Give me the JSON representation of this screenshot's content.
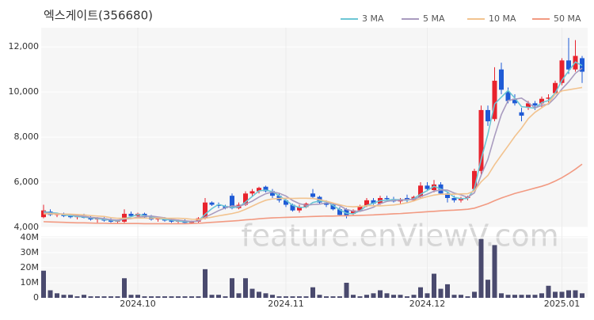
{
  "chart_data": {
    "type": "candlestick",
    "title": "엑스게이트(356680)",
    "watermark": "feature.enViewV.com",
    "up_color": "#e8232d",
    "down_color": "#1f5bd6",
    "categories": [
      null,
      null,
      null,
      null,
      null,
      null,
      null,
      null,
      null,
      null,
      null,
      null,
      null,
      null,
      "2024.10",
      null,
      null,
      null,
      null,
      null,
      null,
      null,
      null,
      null,
      null,
      null,
      null,
      null,
      null,
      null,
      null,
      null,
      null,
      null,
      null,
      null,
      "2024.11",
      null,
      null,
      null,
      null,
      null,
      null,
      null,
      null,
      null,
      null,
      null,
      null,
      null,
      null,
      null,
      null,
      null,
      null,
      null,
      null,
      "2024.12",
      null,
      null,
      null,
      null,
      null,
      null,
      null,
      null,
      null,
      null,
      null,
      null,
      null,
      null,
      null,
      null,
      null,
      null,
      null,
      "2025.01",
      null,
      null,
      null
    ],
    "open": [
      4450,
      4700,
      4550,
      4600,
      4500,
      4450,
      4500,
      4420,
      4350,
      4400,
      4300,
      4250,
      4250,
      4600,
      4500,
      4600,
      4450,
      4350,
      4400,
      4300,
      4250,
      4300,
      4200,
      4250,
      4400,
      5100,
      5000,
      4950,
      5400,
      4850,
      5000,
      5500,
      5600,
      5800,
      5600,
      5400,
      5200,
      5000,
      4750,
      4900,
      5500,
      5350,
      5100,
      5000,
      4800,
      4800,
      4600,
      4750,
      4950,
      5200,
      5050,
      5300,
      5250,
      5150,
      5300,
      5200,
      5350,
      5850,
      5650,
      5900,
      5500,
      5300,
      5200,
      5300,
      5700,
      6500,
      9200,
      8800,
      11000,
      10000,
      9700,
      9100,
      9300,
      9500,
      9500,
      9700,
      9950,
      10400,
      11400,
      11000,
      11500
    ],
    "high": [
      5000,
      4800,
      4650,
      4650,
      4600,
      4550,
      4600,
      4500,
      4450,
      4450,
      4400,
      4350,
      4800,
      4700,
      4650,
      4650,
      4550,
      4450,
      4450,
      4400,
      4350,
      4350,
      4300,
      4450,
      5300,
      5150,
      5100,
      5000,
      5500,
      5100,
      5600,
      5700,
      5800,
      5850,
      5700,
      5500,
      5300,
      5050,
      5000,
      5100,
      5700,
      5400,
      5200,
      5050,
      4900,
      4850,
      4800,
      5000,
      5300,
      5300,
      5400,
      5400,
      5350,
      5300,
      5450,
      5400,
      6000,
      6000,
      6100,
      6000,
      5600,
      5400,
      5350,
      5400,
      6600,
      9400,
      9400,
      11100,
      11300,
      10200,
      9900,
      9300,
      9600,
      9600,
      9800,
      9900,
      10500,
      11500,
      12400,
      12300,
      11600
    ],
    "low": [
      4400,
      4500,
      4450,
      4450,
      4400,
      4350,
      4400,
      4300,
      4200,
      4250,
      4200,
      4150,
      4200,
      4450,
      4400,
      4400,
      4300,
      4250,
      4250,
      4200,
      4150,
      4150,
      4150,
      4200,
      4350,
      4950,
      4850,
      4800,
      4800,
      4800,
      4950,
      5350,
      5500,
      5550,
      5300,
      5100,
      4900,
      4700,
      4650,
      4850,
      5300,
      5050,
      4900,
      4750,
      4500,
      4400,
      4550,
      4700,
      4900,
      5000,
      5000,
      5150,
      5100,
      5050,
      5100,
      5150,
      5300,
      5600,
      5550,
      5450,
      5100,
      5100,
      5100,
      5200,
      5600,
      6300,
      8500,
      8700,
      9900,
      9500,
      9400,
      8700,
      9200,
      9200,
      9300,
      9500,
      9900,
      10300,
      10800,
      10900,
      10400
    ],
    "close": [
      4750,
      4550,
      4600,
      4500,
      4450,
      4500,
      4420,
      4350,
      4400,
      4300,
      4250,
      4300,
      4600,
      4500,
      4600,
      4450,
      4350,
      4400,
      4300,
      4250,
      4300,
      4200,
      4250,
      4400,
      5100,
      5000,
      4950,
      4850,
      4850,
      5000,
      5500,
      5600,
      5750,
      5600,
      5400,
      5200,
      5000,
      4750,
      4900,
      5050,
      5350,
      5100,
      5000,
      4800,
      4550,
      4500,
      4750,
      4950,
      5200,
      5050,
      5300,
      5250,
      5150,
      5250,
      5200,
      5350,
      5850,
      5700,
      5900,
      5500,
      5300,
      5200,
      5300,
      5350,
      6500,
      9200,
      8700,
      10500,
      10100,
      9600,
      9500,
      8950,
      9500,
      9400,
      9700,
      9750,
      10400,
      11400,
      11000,
      11600,
      10900
    ],
    "ylim": [
      4000,
      12850
    ],
    "yticks": [
      {
        "value": 4000,
        "label": "4,000"
      },
      {
        "value": 6000,
        "label": "6,000"
      },
      {
        "value": 8000,
        "label": "8,000"
      },
      {
        "value": 10000,
        "label": "10,000"
      },
      {
        "value": 12000,
        "label": "12,000"
      }
    ],
    "ma": [
      {
        "name": "3 MA",
        "color": "#6cc6d4",
        "values": [
          4700,
          4650,
          4630,
          4550,
          4520,
          4480,
          4460,
          4420,
          4390,
          4350,
          4320,
          4280,
          4380,
          4470,
          4570,
          4520,
          4470,
          4400,
          4350,
          4320,
          4280,
          4250,
          4250,
          4280,
          4580,
          4830,
          5020,
          4930,
          4880,
          4900,
          5120,
          5370,
          5620,
          5650,
          5580,
          5400,
          5200,
          4980,
          4880,
          4900,
          5100,
          5170,
          5150,
          4970,
          4780,
          4620,
          4600,
          4730,
          4970,
          5070,
          5180,
          5200,
          5230,
          5220,
          5200,
          5270,
          5470,
          5630,
          5820,
          5700,
          5570,
          5330,
          5270,
          5280,
          5720,
          7020,
          8130,
          9470,
          9770,
          10070,
          9730,
          9350,
          9320,
          9280,
          9530,
          9620,
          9950,
          10520,
          10930,
          11330,
          11170
        ]
      },
      {
        "name": "5 MA",
        "color": "#a99bbf",
        "values": [
          4650,
          4620,
          4600,
          4590,
          4570,
          4520,
          4490,
          4440,
          4420,
          4390,
          4340,
          4320,
          4370,
          4390,
          4450,
          4490,
          4500,
          4460,
          4420,
          4350,
          4320,
          4290,
          4260,
          4280,
          4450,
          4590,
          4740,
          4860,
          4950,
          4930,
          5030,
          5160,
          5340,
          5490,
          5570,
          5510,
          5390,
          5190,
          5050,
          4980,
          5010,
          5030,
          5080,
          5060,
          4960,
          4790,
          4720,
          4710,
          4790,
          4890,
          5050,
          5150,
          5190,
          5200,
          5230,
          5240,
          5360,
          5470,
          5600,
          5660,
          5650,
          5520,
          5440,
          5330,
          5530,
          6310,
          7010,
          8050,
          9000,
          9620,
          9680,
          9730,
          9530,
          9290,
          9410,
          9460,
          9750,
          10130,
          10450,
          10830,
          11060
        ]
      },
      {
        "name": "10 MA",
        "color": "#f2c38f",
        "values": [
          4600,
          4600,
          4590,
          4580,
          4580,
          4570,
          4550,
          4520,
          4500,
          4480,
          4430,
          4400,
          4400,
          4400,
          4410,
          4410,
          4400,
          4410,
          4400,
          4400,
          4400,
          4390,
          4360,
          4350,
          4400,
          4450,
          4510,
          4560,
          4610,
          4680,
          4800,
          4940,
          5080,
          5200,
          5260,
          5280,
          5290,
          5280,
          5290,
          5290,
          5280,
          5230,
          5160,
          5080,
          5000,
          4930,
          4910,
          4930,
          4960,
          4960,
          4950,
          4970,
          4990,
          5030,
          5090,
          5170,
          5280,
          5360,
          5430,
          5470,
          5470,
          5470,
          5480,
          5490,
          5620,
          6020,
          6300,
          6780,
          7200,
          7610,
          8030,
          8400,
          8820,
          9100,
          9300,
          9500,
          9900,
          10050,
          10100,
          10150,
          10200
        ]
      },
      {
        "name": "50 MA",
        "color": "#f29a82",
        "values": [
          4250,
          4240,
          4230,
          4220,
          4210,
          4200,
          4200,
          4190,
          4180,
          4180,
          4170,
          4170,
          4170,
          4170,
          4170,
          4160,
          4160,
          4160,
          4160,
          4160,
          4160,
          4160,
          4170,
          4180,
          4200,
          4220,
          4240,
          4260,
          4280,
          4300,
          4330,
          4350,
          4380,
          4400,
          4420,
          4430,
          4440,
          4450,
          4460,
          4470,
          4480,
          4490,
          4500,
          4500,
          4510,
          4510,
          4520,
          4530,
          4540,
          4550,
          4570,
          4580,
          4600,
          4610,
          4630,
          4650,
          4670,
          4690,
          4710,
          4730,
          4750,
          4760,
          4780,
          4800,
          4850,
          4950,
          5050,
          5180,
          5300,
          5400,
          5500,
          5580,
          5660,
          5740,
          5820,
          5920,
          6050,
          6200,
          6380,
          6580,
          6800
        ]
      }
    ],
    "volume": {
      "color": "#4a4a6e",
      "values": [
        18000000,
        5000000,
        3000000,
        2000000,
        2000000,
        1000000,
        2000000,
        1000000,
        1000000,
        1000000,
        1000000,
        1000000,
        13000000,
        2000000,
        2000000,
        1000000,
        1000000,
        1000000,
        1000000,
        1000000,
        1000000,
        1000000,
        1000000,
        1000000,
        19000000,
        2000000,
        2000000,
        1000000,
        13000000,
        3000000,
        13000000,
        6000000,
        4000000,
        3000000,
        2000000,
        1000000,
        1000000,
        1000000,
        1000000,
        1000000,
        7000000,
        2000000,
        1000000,
        1000000,
        1000000,
        10000000,
        2000000,
        1000000,
        2000000,
        3000000,
        5000000,
        3000000,
        2000000,
        2000000,
        1000000,
        2000000,
        7000000,
        3000000,
        16000000,
        6000000,
        9000000,
        2000000,
        2000000,
        1000000,
        4000000,
        39000000,
        12000000,
        35000000,
        3000000,
        2000000,
        2000000,
        2000000,
        2000000,
        2000000,
        3000000,
        8000000,
        4000000,
        4000000,
        5000000,
        5000000,
        3000000
      ],
      "ylim": [
        0,
        41000000
      ],
      "yticks": [
        0,
        {
          "value": 10000000,
          "label": "10M"
        },
        {
          "value": 20000000,
          "label": "20M"
        },
        {
          "value": 30000000,
          "label": "30M"
        },
        {
          "value": 40000000,
          "label": "40M"
        }
      ]
    }
  }
}
